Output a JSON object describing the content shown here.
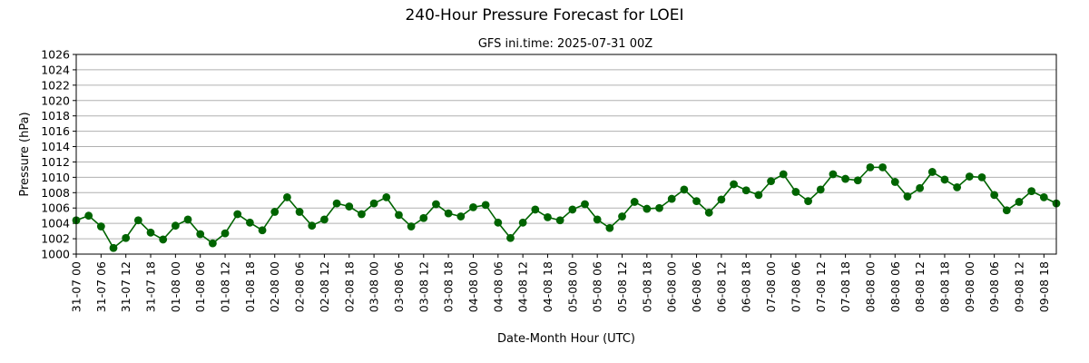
{
  "chart_data": {
    "type": "line",
    "title": "240-Hour Pressure Forecast for LOEI",
    "subtitle": "GFS ini.time: 2025-07-31 00Z",
    "xlabel": "Date-Month Hour (UTC)",
    "ylabel": "Pressure (hPa)",
    "ylim": [
      1000,
      1026
    ],
    "yticks": [
      1000,
      1002,
      1004,
      1006,
      1008,
      1010,
      1012,
      1014,
      1016,
      1018,
      1020,
      1022,
      1024,
      1026
    ],
    "x_step_hours": 3,
    "xticks": [
      "31-07 00",
      "31-07 06",
      "31-07 12",
      "31-07 18",
      "01-08 00",
      "01-08 06",
      "01-08 12",
      "01-08 18",
      "02-08 00",
      "02-08 06",
      "02-08 12",
      "02-08 18",
      "03-08 00",
      "03-08 06",
      "03-08 12",
      "03-08 18",
      "04-08 00",
      "04-08 06",
      "04-08 12",
      "04-08 18",
      "05-08 00",
      "05-08 06",
      "05-08 12",
      "05-08 18",
      "06-08 00",
      "06-08 06",
      "06-08 12",
      "06-08 18",
      "07-08 00",
      "07-08 06",
      "07-08 12",
      "07-08 18",
      "08-08 00",
      "08-08 06",
      "08-08 12",
      "08-08 18",
      "09-08 00",
      "09-08 06",
      "09-08 12",
      "09-08 18"
    ],
    "grid": "y",
    "color": "#006400",
    "series": [
      {
        "values": [
          1004.4,
          1005.0,
          1003.6,
          1000.8,
          1002.1,
          1004.4,
          1002.8,
          1001.9,
          1003.7,
          1004.5,
          1002.6,
          1001.4,
          1002.7,
          1005.2,
          1004.1,
          1003.1,
          1005.5,
          1007.4,
          1005.5,
          1003.7,
          1004.5,
          1006.6,
          1006.2,
          1005.2,
          1006.6,
          1007.4,
          1005.1,
          1003.6,
          1004.7,
          1006.5,
          1005.3,
          1004.9,
          1006.1,
          1006.4,
          1004.1,
          1002.1,
          1004.1,
          1005.8,
          1004.8,
          1004.4,
          1005.8,
          1006.5,
          1004.5,
          1003.4,
          1004.9,
          1006.8,
          1005.9,
          1006.0,
          1007.2,
          1008.4,
          1006.9,
          1005.4,
          1007.1,
          1009.1,
          1008.3,
          1007.7,
          1009.5,
          1010.4,
          1008.1,
          1006.9,
          1008.4,
          1010.4,
          1009.8,
          1009.6,
          1011.3,
          1011.3,
          1009.4,
          1007.5,
          1008.6,
          1010.7,
          1009.7,
          1008.7,
          1010.1,
          1010.0,
          1007.7,
          1005.7,
          1006.8,
          1008.2,
          1007.4,
          1006.6
        ]
      }
    ]
  }
}
